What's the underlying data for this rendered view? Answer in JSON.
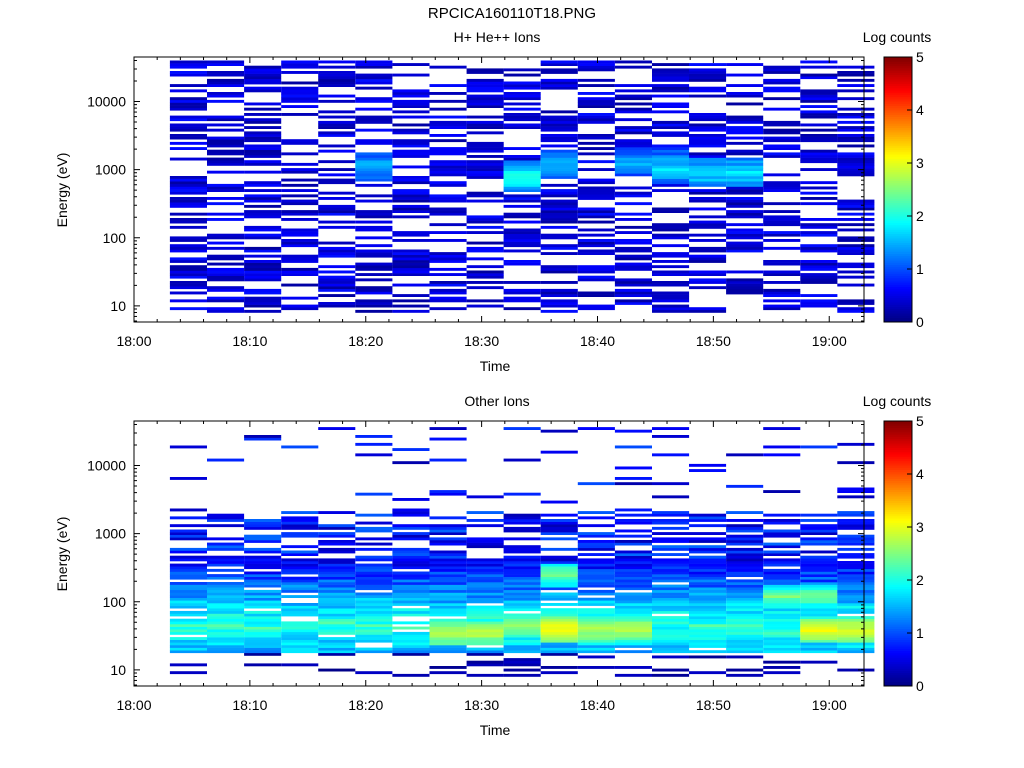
{
  "page_title": "RPCICA160110T18.PNG",
  "chart_data": [
    {
      "type": "heatmap",
      "title": "H+ He++ Ions",
      "xlabel": "Time",
      "ylabel": "Energy (eV)",
      "yscale": "log",
      "ylim": [
        5.8,
        45000
      ],
      "xlim": [
        "18:00",
        "19:03"
      ],
      "x_ticks": [
        "18:00",
        "18:10",
        "18:20",
        "18:30",
        "18:40",
        "18:50",
        "19:00"
      ],
      "y_ticks": [
        "10",
        "100",
        "1000",
        "10000"
      ],
      "colorbar": {
        "label": "Log counts",
        "range": [
          0,
          5
        ],
        "ticks": [
          "0",
          "1",
          "2",
          "3",
          "4",
          "5"
        ]
      },
      "time_columns": [
        "18:03",
        "18:06",
        "18:09",
        "18:12",
        "18:16",
        "18:19",
        "18:22",
        "18:25",
        "18:28",
        "18:32",
        "18:35",
        "18:38",
        "18:41",
        "18:44",
        "18:48",
        "18:51",
        "18:54",
        "18:57",
        "19:00"
      ],
      "notes": "Sparse low-count coverage across 8 eV to 40 keV; peak ~2.2 log counts near 1000 eV around 18:33-18:36 and 18:45-18:54.",
      "hotspots": [
        {
          "time": "18:20",
          "energy_eV": 1100,
          "log_counts": 1.8
        },
        {
          "time": "18:33",
          "energy_eV": 800,
          "log_counts": 2.2
        },
        {
          "time": "18:36",
          "energy_eV": 1200,
          "log_counts": 1.8
        },
        {
          "time": "18:44",
          "energy_eV": 1300,
          "log_counts": 1.7
        },
        {
          "time": "18:47",
          "energy_eV": 1000,
          "log_counts": 1.9
        },
        {
          "time": "18:51",
          "energy_eV": 900,
          "log_counts": 2.0
        }
      ]
    },
    {
      "type": "heatmap",
      "title": "Other Ions",
      "xlabel": "Time",
      "ylabel": "Energy (eV)",
      "yscale": "log",
      "ylim": [
        5.8,
        45000
      ],
      "xlim": [
        "18:00",
        "19:03"
      ],
      "x_ticks": [
        "18:00",
        "18:10",
        "18:20",
        "18:30",
        "18:40",
        "18:50",
        "19:00"
      ],
      "y_ticks": [
        "10",
        "100",
        "1000",
        "10000"
      ],
      "colorbar": {
        "label": "Log counts",
        "range": [
          0,
          5
        ],
        "ticks": [
          "0",
          "1",
          "2",
          "3",
          "4",
          "5"
        ]
      },
      "notes": "Intense band 20-300 eV throughout; maximum ~3.3 log counts near 40 eV at 18:36-18:38 and 19:00.",
      "hotspots": [
        {
          "time": "18:29",
          "energy_eV": 35,
          "log_counts": 3.0
        },
        {
          "time": "18:33",
          "energy_eV": 45,
          "log_counts": 2.8
        },
        {
          "time": "18:37",
          "energy_eV": 40,
          "log_counts": 3.3
        },
        {
          "time": "18:37",
          "energy_eV": 250,
          "log_counts": 2.6
        },
        {
          "time": "18:41",
          "energy_eV": 40,
          "log_counts": 3.0
        },
        {
          "time": "18:57",
          "energy_eV": 120,
          "log_counts": 2.6
        },
        {
          "time": "19:00",
          "energy_eV": 38,
          "log_counts": 3.2
        }
      ]
    }
  ]
}
